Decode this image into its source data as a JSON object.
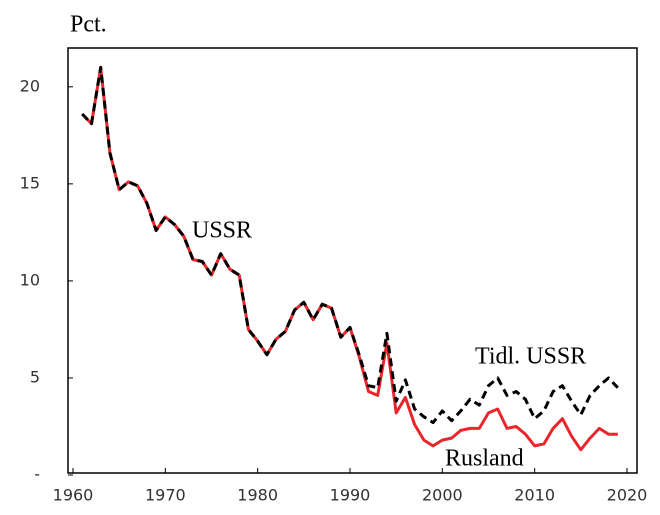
{
  "chart_data": {
    "type": "line",
    "y_label": "Pct.",
    "annotations": [
      "USSR"
    ],
    "x": [
      1961,
      1962,
      1963,
      1964,
      1965,
      1966,
      1967,
      1968,
      1969,
      1970,
      1971,
      1972,
      1973,
      1974,
      1975,
      1976,
      1977,
      1978,
      1979,
      1980,
      1981,
      1982,
      1983,
      1984,
      1985,
      1986,
      1987,
      1988,
      1989,
      1990,
      1991,
      1992,
      1993,
      1994,
      1995,
      1996,
      1997,
      1998,
      1999,
      2000,
      2001,
      2002,
      2003,
      2004,
      2005,
      2006,
      2007,
      2008,
      2009,
      2010,
      2011,
      2012,
      2013,
      2014,
      2015,
      2016,
      2017,
      2018,
      2019
    ],
    "series": [
      {
        "name": "Rusland",
        "color": "#e8262b",
        "dashed": false,
        "values": [
          18.6,
          18.1,
          21.0,
          16.6,
          14.7,
          15.1,
          14.9,
          14.0,
          12.6,
          13.3,
          12.9,
          12.3,
          11.1,
          11.0,
          10.3,
          11.4,
          10.6,
          10.3,
          7.5,
          6.9,
          6.2,
          7.0,
          7.4,
          8.5,
          8.9,
          8.0,
          8.8,
          8.6,
          7.1,
          7.6,
          6.1,
          4.3,
          4.1,
          6.8,
          3.2,
          4.0,
          2.6,
          1.8,
          1.5,
          1.8,
          1.9,
          2.3,
          2.4,
          2.4,
          3.2,
          3.4,
          2.4,
          2.5,
          2.1,
          1.5,
          1.6,
          2.4,
          2.9,
          2.0,
          1.3,
          1.9,
          2.4,
          2.1,
          2.1
        ]
      },
      {
        "name": "Tidl. USSR",
        "color": "#000000",
        "dashed": true,
        "values": [
          18.6,
          18.1,
          21.0,
          16.6,
          14.7,
          15.1,
          14.9,
          14.0,
          12.6,
          13.3,
          12.9,
          12.3,
          11.1,
          11.0,
          10.3,
          11.4,
          10.6,
          10.3,
          7.5,
          6.9,
          6.2,
          7.0,
          7.4,
          8.5,
          8.9,
          8.0,
          8.8,
          8.6,
          7.1,
          7.6,
          6.2,
          4.6,
          4.5,
          7.3,
          3.8,
          4.9,
          3.4,
          3.0,
          2.7,
          3.3,
          2.8,
          3.3,
          3.9,
          3.6,
          4.6,
          5.0,
          4.1,
          4.3,
          3.9,
          2.9,
          3.3,
          4.3,
          4.6,
          3.8,
          3.1,
          4.1,
          4.6,
          5.0,
          4.5
        ]
      }
    ],
    "xlim": [
      1960,
      2020
    ],
    "xticks": [
      1960,
      1970,
      1980,
      1990,
      2000,
      2010,
      2020
    ],
    "ylim": [
      0,
      22
    ],
    "yticks": [
      {
        "value": 0,
        "label": "-"
      },
      5,
      10,
      15,
      20
    ]
  }
}
